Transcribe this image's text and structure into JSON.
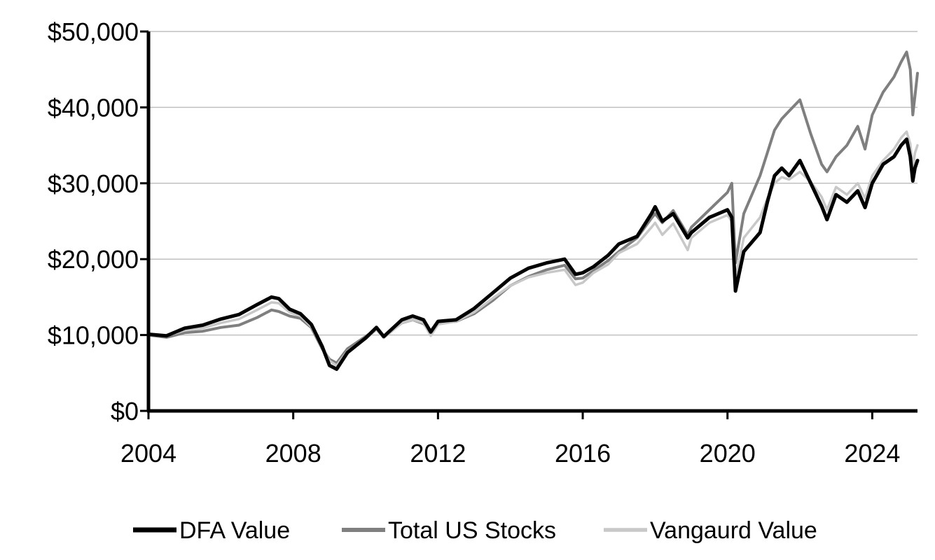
{
  "chart_data": {
    "type": "line",
    "title": "",
    "xlabel": "",
    "ylabel": "",
    "xlim": [
      2004,
      2025.25
    ],
    "ylim": [
      0,
      50000
    ],
    "x_ticks": [
      2004,
      2008,
      2012,
      2016,
      2020,
      2024
    ],
    "x_tick_labels": [
      "2004",
      "2008",
      "2012",
      "2016",
      "2020",
      "2024"
    ],
    "y_ticks": [
      0,
      10000,
      20000,
      30000,
      40000,
      50000
    ],
    "y_tick_labels": [
      "$0",
      "$10,000",
      "$20,000",
      "$30,000",
      "$40,000",
      "$50,000"
    ],
    "grid": "horizontal",
    "legend_position": "bottom",
    "series": [
      {
        "name": "DFA Value",
        "color": "#000000",
        "points": [
          [
            2004.0,
            10100
          ],
          [
            2004.5,
            9900
          ],
          [
            2005.0,
            10900
          ],
          [
            2005.5,
            11300
          ],
          [
            2006.0,
            12100
          ],
          [
            2006.5,
            12700
          ],
          [
            2007.0,
            14000
          ],
          [
            2007.4,
            15000
          ],
          [
            2007.6,
            14800
          ],
          [
            2007.9,
            13400
          ],
          [
            2008.2,
            12800
          ],
          [
            2008.5,
            11400
          ],
          [
            2008.8,
            8500
          ],
          [
            2009.0,
            6000
          ],
          [
            2009.2,
            5500
          ],
          [
            2009.5,
            7700
          ],
          [
            2010.0,
            9600
          ],
          [
            2010.3,
            11000
          ],
          [
            2010.5,
            9800
          ],
          [
            2011.0,
            12000
          ],
          [
            2011.3,
            12500
          ],
          [
            2011.6,
            12000
          ],
          [
            2011.8,
            10400
          ],
          [
            2012.0,
            11800
          ],
          [
            2012.5,
            12000
          ],
          [
            2013.0,
            13500
          ],
          [
            2013.5,
            15500
          ],
          [
            2014.0,
            17500
          ],
          [
            2014.5,
            18800
          ],
          [
            2015.0,
            19500
          ],
          [
            2015.5,
            20000
          ],
          [
            2015.8,
            18000
          ],
          [
            2016.0,
            18200
          ],
          [
            2016.3,
            19000
          ],
          [
            2016.7,
            20500
          ],
          [
            2017.0,
            22000
          ],
          [
            2017.5,
            23000
          ],
          [
            2017.9,
            26000
          ],
          [
            2018.0,
            26900
          ],
          [
            2018.2,
            25000
          ],
          [
            2018.5,
            26000
          ],
          [
            2018.9,
            22800
          ],
          [
            2019.0,
            23500
          ],
          [
            2019.5,
            25500
          ],
          [
            2020.0,
            26500
          ],
          [
            2020.12,
            25500
          ],
          [
            2020.22,
            15800
          ],
          [
            2020.45,
            21000
          ],
          [
            2020.9,
            23500
          ],
          [
            2021.1,
            27500
          ],
          [
            2021.3,
            31000
          ],
          [
            2021.5,
            32000
          ],
          [
            2021.7,
            31000
          ],
          [
            2022.0,
            33000
          ],
          [
            2022.3,
            30000
          ],
          [
            2022.6,
            27000
          ],
          [
            2022.75,
            25200
          ],
          [
            2023.0,
            28500
          ],
          [
            2023.3,
            27500
          ],
          [
            2023.6,
            29000
          ],
          [
            2023.8,
            26800
          ],
          [
            2024.0,
            30000
          ],
          [
            2024.3,
            32500
          ],
          [
            2024.6,
            33500
          ],
          [
            2024.8,
            35000
          ],
          [
            2024.95,
            35800
          ],
          [
            2025.05,
            33500
          ],
          [
            2025.12,
            30300
          ],
          [
            2025.18,
            32000
          ],
          [
            2025.25,
            33000
          ]
        ]
      },
      {
        "name": "Total US Stocks",
        "color": "#7f7f7f",
        "points": [
          [
            2004.0,
            10000
          ],
          [
            2004.5,
            9700
          ],
          [
            2005.0,
            10300
          ],
          [
            2005.5,
            10500
          ],
          [
            2006.0,
            11000
          ],
          [
            2006.5,
            11300
          ],
          [
            2007.0,
            12300
          ],
          [
            2007.4,
            13300
          ],
          [
            2007.6,
            13100
          ],
          [
            2007.9,
            12500
          ],
          [
            2008.2,
            12200
          ],
          [
            2008.5,
            11000
          ],
          [
            2008.8,
            8200
          ],
          [
            2009.0,
            6800
          ],
          [
            2009.2,
            6300
          ],
          [
            2009.5,
            8200
          ],
          [
            2010.0,
            9800
          ],
          [
            2010.3,
            10800
          ],
          [
            2010.5,
            9800
          ],
          [
            2011.0,
            11600
          ],
          [
            2011.3,
            12000
          ],
          [
            2011.6,
            11500
          ],
          [
            2011.8,
            10400
          ],
          [
            2012.0,
            11600
          ],
          [
            2012.5,
            11800
          ],
          [
            2013.0,
            12800
          ],
          [
            2013.5,
            14500
          ],
          [
            2014.0,
            16500
          ],
          [
            2014.5,
            17700
          ],
          [
            2015.0,
            18600
          ],
          [
            2015.5,
            19200
          ],
          [
            2015.8,
            17400
          ],
          [
            2016.0,
            17500
          ],
          [
            2016.3,
            18500
          ],
          [
            2016.7,
            19800
          ],
          [
            2017.0,
            21000
          ],
          [
            2017.5,
            22800
          ],
          [
            2017.9,
            25400
          ],
          [
            2018.0,
            26000
          ],
          [
            2018.2,
            24800
          ],
          [
            2018.5,
            26400
          ],
          [
            2018.9,
            23200
          ],
          [
            2019.0,
            24200
          ],
          [
            2019.5,
            26500
          ],
          [
            2020.0,
            28800
          ],
          [
            2020.12,
            30000
          ],
          [
            2020.22,
            19500
          ],
          [
            2020.45,
            26000
          ],
          [
            2020.9,
            31000
          ],
          [
            2021.1,
            34000
          ],
          [
            2021.3,
            37000
          ],
          [
            2021.5,
            38500
          ],
          [
            2021.7,
            39500
          ],
          [
            2022.0,
            41000
          ],
          [
            2022.3,
            36500
          ],
          [
            2022.6,
            32500
          ],
          [
            2022.75,
            31500
          ],
          [
            2023.0,
            33500
          ],
          [
            2023.3,
            35000
          ],
          [
            2023.6,
            37500
          ],
          [
            2023.8,
            34500
          ],
          [
            2024.0,
            39000
          ],
          [
            2024.3,
            42000
          ],
          [
            2024.6,
            44000
          ],
          [
            2024.8,
            46000
          ],
          [
            2024.95,
            47300
          ],
          [
            2025.05,
            45000
          ],
          [
            2025.12,
            39000
          ],
          [
            2025.18,
            41500
          ],
          [
            2025.25,
            44500
          ]
        ]
      },
      {
        "name": "Vangaurd Value",
        "color": "#c8c8c8",
        "points": [
          [
            2004.0,
            10000
          ],
          [
            2004.5,
            9900
          ],
          [
            2005.0,
            10600
          ],
          [
            2005.5,
            10900
          ],
          [
            2006.0,
            11600
          ],
          [
            2006.5,
            12100
          ],
          [
            2007.0,
            13300
          ],
          [
            2007.4,
            14300
          ],
          [
            2007.6,
            14200
          ],
          [
            2007.9,
            13000
          ],
          [
            2008.2,
            12500
          ],
          [
            2008.5,
            11100
          ],
          [
            2008.8,
            8400
          ],
          [
            2009.0,
            6600
          ],
          [
            2009.2,
            6000
          ],
          [
            2009.5,
            7900
          ],
          [
            2010.0,
            9500
          ],
          [
            2010.3,
            10700
          ],
          [
            2010.5,
            9600
          ],
          [
            2011.0,
            11600
          ],
          [
            2011.3,
            12000
          ],
          [
            2011.6,
            11600
          ],
          [
            2011.8,
            9900
          ],
          [
            2012.0,
            11400
          ],
          [
            2012.5,
            11800
          ],
          [
            2013.0,
            13000
          ],
          [
            2013.5,
            14800
          ],
          [
            2014.0,
            16500
          ],
          [
            2014.5,
            17600
          ],
          [
            2015.0,
            18200
          ],
          [
            2015.5,
            18600
          ],
          [
            2015.8,
            16600
          ],
          [
            2016.0,
            16900
          ],
          [
            2016.3,
            18200
          ],
          [
            2016.7,
            19300
          ],
          [
            2017.0,
            20800
          ],
          [
            2017.5,
            22000
          ],
          [
            2017.9,
            24200
          ],
          [
            2018.0,
            24800
          ],
          [
            2018.2,
            23200
          ],
          [
            2018.5,
            24700
          ],
          [
            2018.9,
            21200
          ],
          [
            2019.0,
            22800
          ],
          [
            2019.5,
            24800
          ],
          [
            2020.0,
            25800
          ],
          [
            2020.12,
            25000
          ],
          [
            2020.22,
            17500
          ],
          [
            2020.45,
            22800
          ],
          [
            2020.9,
            25500
          ],
          [
            2021.1,
            28000
          ],
          [
            2021.3,
            30000
          ],
          [
            2021.5,
            30800
          ],
          [
            2021.7,
            30500
          ],
          [
            2022.0,
            31500
          ],
          [
            2022.3,
            30200
          ],
          [
            2022.6,
            28200
          ],
          [
            2022.75,
            26500
          ],
          [
            2023.0,
            29500
          ],
          [
            2023.3,
            28500
          ],
          [
            2023.6,
            30000
          ],
          [
            2023.8,
            28000
          ],
          [
            2024.0,
            31000
          ],
          [
            2024.3,
            33000
          ],
          [
            2024.6,
            34500
          ],
          [
            2024.8,
            36000
          ],
          [
            2024.95,
            36800
          ],
          [
            2025.05,
            35200
          ],
          [
            2025.12,
            32000
          ],
          [
            2025.18,
            34000
          ],
          [
            2025.25,
            35000
          ]
        ]
      }
    ]
  }
}
